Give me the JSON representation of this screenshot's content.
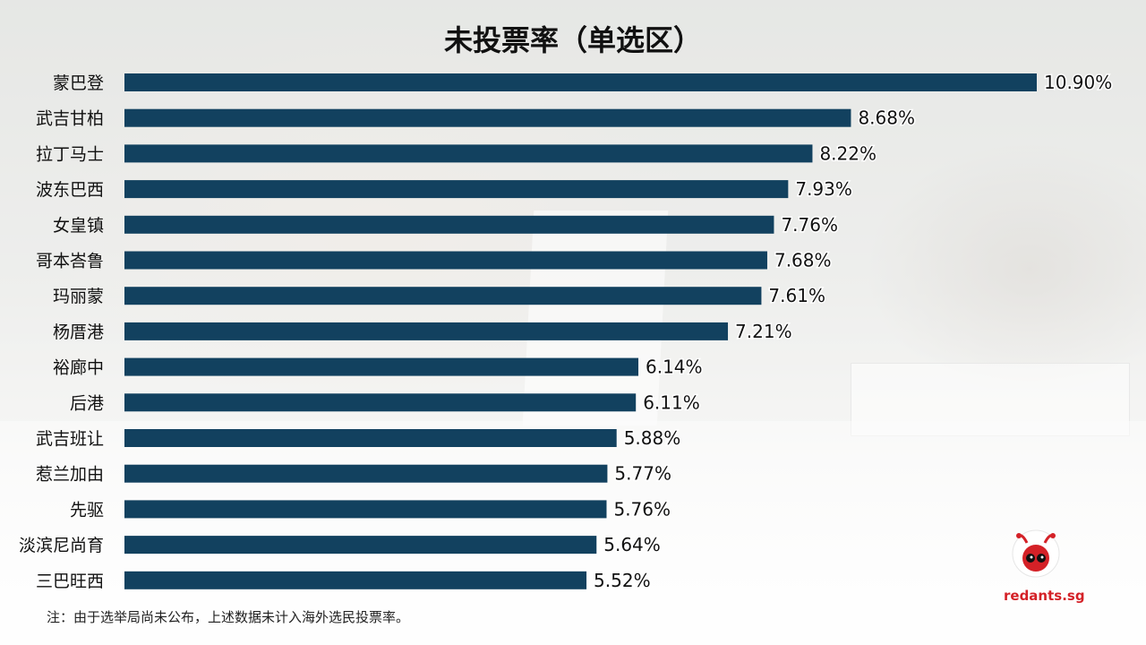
{
  "chart_data": {
    "type": "bar",
    "orientation": "horizontal",
    "title": "未投票率（单选区）",
    "categories": [
      "蒙巴登",
      "武吉甘柏",
      "拉丁马士",
      "波东巴西",
      "女皇镇",
      "哥本峇鲁",
      "玛丽蒙",
      "杨厝港",
      "裕廊中",
      "后港",
      "武吉班让",
      "惹兰加由",
      "先驱",
      "淡滨尼尚育",
      "三巴旺西"
    ],
    "values": [
      10.9,
      8.68,
      8.22,
      7.93,
      7.76,
      7.68,
      7.61,
      7.21,
      6.14,
      6.11,
      5.88,
      5.77,
      5.76,
      5.64,
      5.52
    ],
    "data_labels": [
      "10.90%",
      "8.68%",
      "8.22%",
      "7.93%",
      "7.76%",
      "7.68%",
      "7.61%",
      "7.21%",
      "6.14%",
      "6.11%",
      "5.88%",
      "5.77%",
      "5.76%",
      "5.64%",
      "5.52%"
    ],
    "xlim": [
      0,
      10.9
    ],
    "grid": false,
    "bar_color": "#12415f"
  },
  "footnote": "注：由于选举局尚未公布，上述数据未计入海外选民投票率。",
  "brand": {
    "logo_icon": "red-ant-icon",
    "logo_text": "redants.sg",
    "brand_color": "#d42127"
  }
}
